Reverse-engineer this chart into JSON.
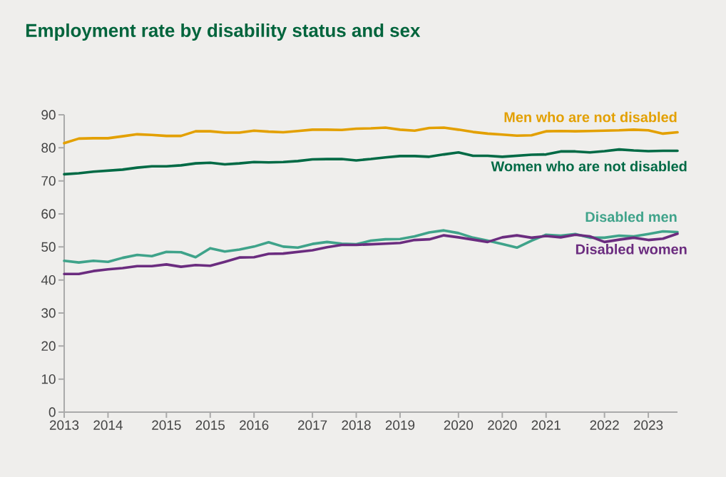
{
  "chart_data": {
    "type": "line",
    "title": "Employment rate by disability status and sex",
    "categories": [
      "2013",
      null,
      null,
      "2014",
      null,
      null,
      null,
      "2015",
      null,
      null,
      "2015",
      null,
      null,
      "2016",
      null,
      null,
      null,
      "2017",
      null,
      null,
      "2018",
      null,
      null,
      "2019",
      null,
      null,
      null,
      "2020",
      null,
      null,
      "2020",
      null,
      null,
      "2021",
      null,
      null,
      null,
      "2022",
      null,
      null,
      "2023",
      null,
      null
    ],
    "series": [
      {
        "name": "Men who are not disabled",
        "color": "#e3a000",
        "values": [
          81.4,
          82.8,
          82.9,
          82.9,
          83.5,
          84.1,
          83.9,
          83.6,
          83.6,
          85.0,
          85.0,
          84.6,
          84.6,
          85.2,
          84.9,
          84.7,
          85.1,
          85.5,
          85.5,
          85.4,
          85.8,
          85.9,
          86.1,
          85.5,
          85.2,
          86.0,
          86.1,
          85.5,
          84.8,
          84.3,
          84.0,
          83.7,
          83.8,
          85.0,
          85.1,
          85.0,
          85.1,
          85.2,
          85.3,
          85.5,
          85.3,
          84.3,
          84.7
        ]
      },
      {
        "name": "Women who are not disabled",
        "color": "#006a45",
        "values": [
          72.0,
          72.3,
          72.8,
          73.1,
          73.4,
          74.0,
          74.4,
          74.4,
          74.7,
          75.3,
          75.5,
          75.0,
          75.3,
          75.7,
          75.6,
          75.7,
          76.0,
          76.5,
          76.6,
          76.6,
          76.2,
          76.6,
          77.1,
          77.5,
          77.5,
          77.3,
          78.0,
          78.6,
          77.6,
          77.6,
          77.3,
          77.6,
          77.9,
          78.0,
          78.9,
          78.9,
          78.6,
          79.0,
          79.5,
          79.2,
          79.0,
          79.1,
          79.1
        ]
      },
      {
        "name": "Disabled men",
        "color": "#3fa38a",
        "values": [
          45.8,
          45.3,
          45.8,
          45.5,
          46.7,
          47.6,
          47.2,
          48.5,
          48.4,
          46.9,
          49.6,
          48.6,
          49.2,
          50.1,
          51.4,
          50.1,
          49.8,
          50.9,
          51.5,
          51.0,
          50.8,
          51.9,
          52.3,
          52.4,
          53.2,
          54.4,
          55.0,
          54.2,
          52.8,
          51.9,
          50.9,
          49.8,
          51.9,
          53.7,
          53.4,
          53.9,
          52.8,
          52.8,
          53.4,
          53.2,
          53.9,
          54.7,
          54.5
        ]
      },
      {
        "name": "Disabled women",
        "color": "#6b2c7f",
        "values": [
          41.8,
          41.8,
          42.7,
          43.2,
          43.6,
          44.2,
          44.2,
          44.7,
          44.0,
          44.5,
          44.3,
          45.5,
          46.8,
          46.9,
          47.9,
          48.0,
          48.5,
          49.0,
          49.9,
          50.6,
          50.6,
          50.8,
          51.0,
          51.2,
          52.1,
          52.3,
          53.5,
          52.9,
          52.2,
          51.5,
          52.9,
          53.5,
          52.8,
          53.3,
          52.9,
          53.7,
          53.2,
          51.5,
          52.2,
          52.8,
          52.1,
          52.5,
          54.0
        ]
      }
    ],
    "ylim": [
      0,
      90
    ],
    "yticks": [
      0,
      10,
      20,
      30,
      40,
      50,
      60,
      70,
      80,
      90
    ],
    "grid": false,
    "legend": false
  }
}
